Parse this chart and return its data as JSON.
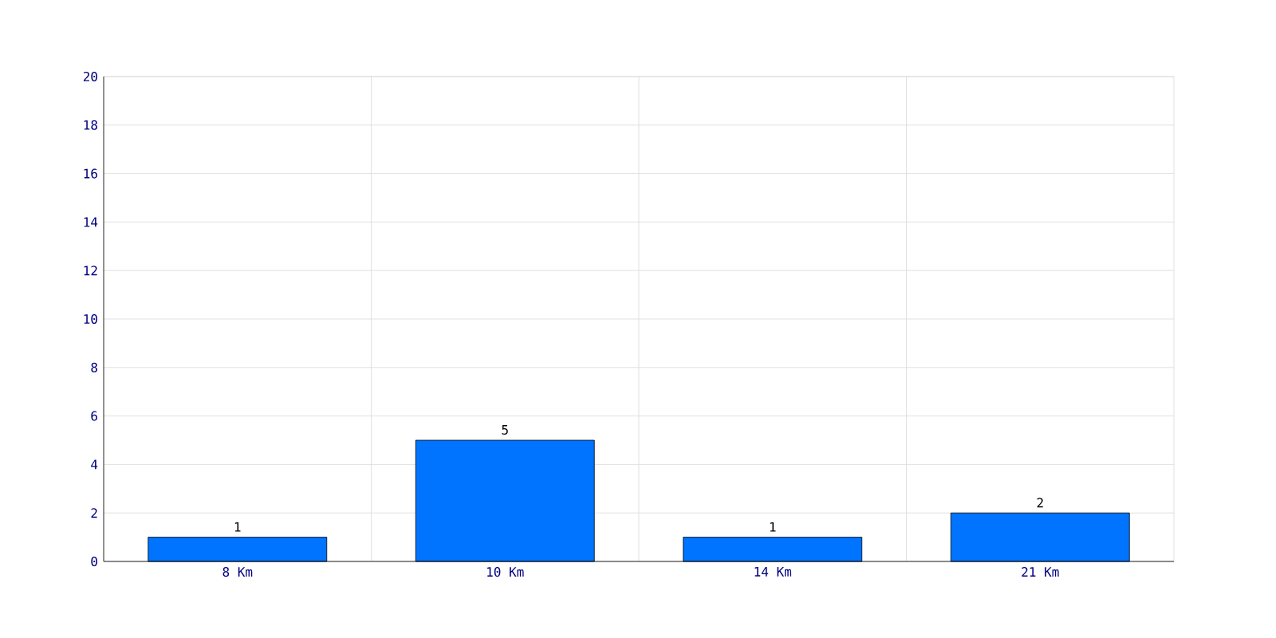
{
  "chart_data": {
    "type": "bar",
    "categories": [
      "8 Km",
      "10 Km",
      "14 Km",
      "21 Km"
    ],
    "values": [
      1,
      5,
      1,
      2
    ],
    "color": "#0073ff",
    "ylim": [
      0,
      20
    ],
    "yticks": [
      0,
      2,
      4,
      6,
      8,
      10,
      12,
      14,
      16,
      18,
      20
    ],
    "grid": true,
    "data_labels": true
  }
}
